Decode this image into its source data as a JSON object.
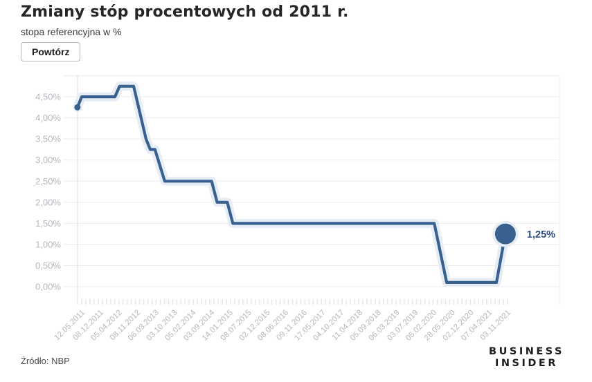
{
  "header": {
    "title": "Zmiany stóp procentowych od 2011 r.",
    "subtitle": "stopa referencyjna w %",
    "replay_button": "Powtórz"
  },
  "footer": {
    "source": "Źródło: NBP",
    "brand_line1": "BUSINESS",
    "brand_line2": "INSIDER"
  },
  "chart_data": {
    "type": "line",
    "title": "Zmiany stóp procentowych od 2011 r.",
    "subtitle": "stopa referencyjna w %",
    "unit": "%",
    "ylim": [
      0,
      5
    ],
    "grid": true,
    "legend_position": "none",
    "series_name": "stopa referencyjna",
    "gridline_values": [
      5.0,
      4.5,
      4.0,
      3.5,
      3.0,
      2.5,
      2.0,
      1.5,
      1.0,
      0.5,
      0.0
    ],
    "y_tick_values": [
      4.5,
      4.0,
      3.5,
      3.0,
      2.5,
      2.0,
      1.5,
      1.0,
      0.5,
      0.0
    ],
    "y_tick_labels": [
      "4,50%",
      "4,00%",
      "3,50%",
      "3,00%",
      "2,50%",
      "2,00%",
      "1,50%",
      "1,00%",
      "0,50%",
      "0,00%"
    ],
    "x_tick_labels": [
      "12.05.2011",
      "08.12.2011",
      "05.04.2012",
      "08.11.2012",
      "06.03.2013",
      "03.10.2013",
      "05.02.2014",
      "03.09.2014",
      "14.01.2015",
      "08.07.2015",
      "02.12.2015",
      "08.06.2016",
      "09.11.2016",
      "17.05.2017",
      "04.10.2017",
      "11.04.2018",
      "05.09.2018",
      "06.03.2019",
      "03.07.2019",
      "05.02.2020",
      "28.05.2020",
      "02.12.2020",
      "07.04.2021",
      "03.11.2021"
    ],
    "minor_tick_count": 104,
    "start_value": 4.25,
    "end_value": 1.25,
    "end_label": "1,25%",
    "points": [
      {
        "x": -0.01,
        "rate": 4.25
      },
      {
        "x": 0.0,
        "rate": 4.5
      },
      {
        "x": 0.078,
        "rate": 4.5
      },
      {
        "x": 0.089,
        "rate": 4.75
      },
      {
        "x": 0.122,
        "rate": 4.75
      },
      {
        "x": 0.151,
        "rate": 3.5
      },
      {
        "x": 0.161,
        "rate": 3.25
      },
      {
        "x": 0.172,
        "rate": 3.25
      },
      {
        "x": 0.195,
        "rate": 2.5
      },
      {
        "x": 0.305,
        "rate": 2.5
      },
      {
        "x": 0.318,
        "rate": 2.0
      },
      {
        "x": 0.342,
        "rate": 2.0
      },
      {
        "x": 0.355,
        "rate": 1.5
      },
      {
        "x": 0.828,
        "rate": 1.5
      },
      {
        "x": 0.857,
        "rate": 0.1
      },
      {
        "x": 0.974,
        "rate": 0.1
      },
      {
        "x": 0.995,
        "rate": 1.25
      }
    ],
    "colors": {
      "line": "#396190",
      "halo": "#e7edf5",
      "grid": "#ededf1",
      "axis_line": "#e2e2e8",
      "tick": "#e8e8ec",
      "axis_text": "#b6b6bf",
      "annotation": "#2c4b78"
    }
  }
}
